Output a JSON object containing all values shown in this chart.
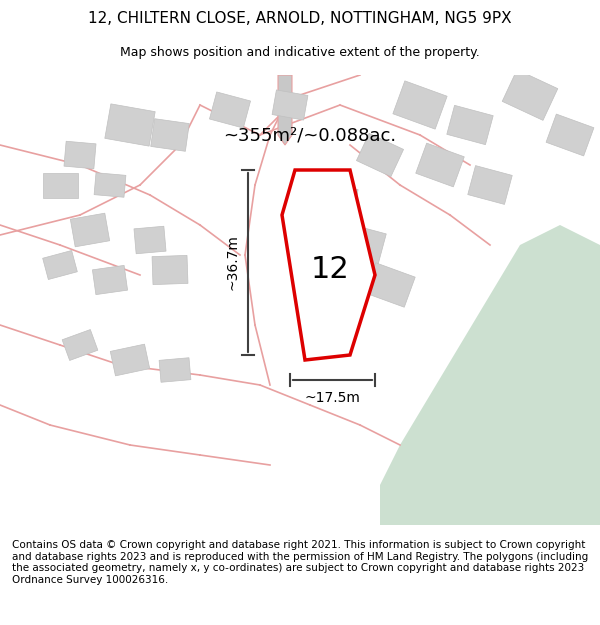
{
  "title": "12, CHILTERN CLOSE, ARNOLD, NOTTINGHAM, NG5 9PX",
  "subtitle": "Map shows position and indicative extent of the property.",
  "footer": "Contains OS data © Crown copyright and database right 2021. This information is subject to Crown copyright and database rights 2023 and is reproduced with the permission of HM Land Registry. The polygons (including the associated geometry, namely x, y co-ordinates) are subject to Crown copyright and database rights 2023 Ordnance Survey 100026316.",
  "area_label": "~355m²/~0.088ac.",
  "property_number": "12",
  "dim_width": "~17.5m",
  "dim_height": "~36.7m",
  "bg_color": "#f2ede8",
  "map_bg": "#f2ede8",
  "green_area_color": "#cce0d0",
  "building_color": "#d9d9d9",
  "road_color": "#ffffff",
  "road_line_color": "#e8a0a0",
  "property_fill": "#ffffff",
  "property_edge": "#dd0000",
  "title_fontsize": 11,
  "subtitle_fontsize": 9,
  "footer_fontsize": 7.5,
  "figsize": [
    6.0,
    6.25
  ],
  "dpi": 100
}
